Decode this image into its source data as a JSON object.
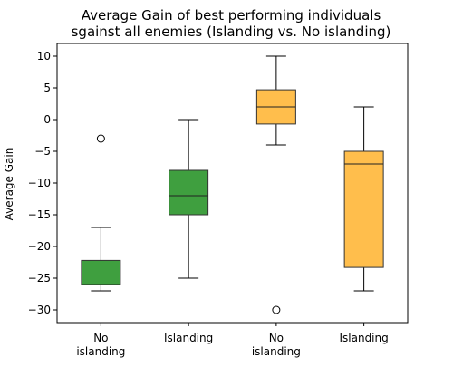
{
  "chart_data": {
    "type": "box",
    "title_lines": [
      "Average Gain of best performing individuals",
      "sgainst all enemies (Islanding vs. No islanding)"
    ],
    "xlabel": "",
    "ylabel": "Average Gain",
    "ylim": [
      -32,
      12
    ],
    "yticks": [
      10,
      5,
      0,
      -5,
      -10,
      -15,
      -20,
      -25,
      -30
    ],
    "grid": false,
    "categories": [
      {
        "label_lines": [
          "No",
          "islanding"
        ]
      },
      {
        "label_lines": [
          "Islanding"
        ]
      },
      {
        "label_lines": [
          "No",
          "islanding"
        ]
      },
      {
        "label_lines": [
          "Islanding"
        ]
      }
    ],
    "boxes": [
      {
        "color": "#3f9f3f",
        "whislo": -27,
        "q1": -26,
        "median": -26,
        "q3": -22.2,
        "whishi": -17,
        "fliers": [
          -3
        ]
      },
      {
        "color": "#3f9f3f",
        "whislo": -25,
        "q1": -15,
        "median": -12,
        "q3": -8,
        "whishi": 0,
        "fliers": []
      },
      {
        "color": "#ffbe4c",
        "whislo": -4,
        "q1": -0.7,
        "median": 2,
        "q3": 4.7,
        "whishi": 10,
        "fliers": [
          -30
        ]
      },
      {
        "color": "#ffbe4c",
        "whislo": -27,
        "q1": -23.3,
        "median": -7,
        "q3": -5,
        "whishi": 2,
        "fliers": []
      }
    ]
  }
}
